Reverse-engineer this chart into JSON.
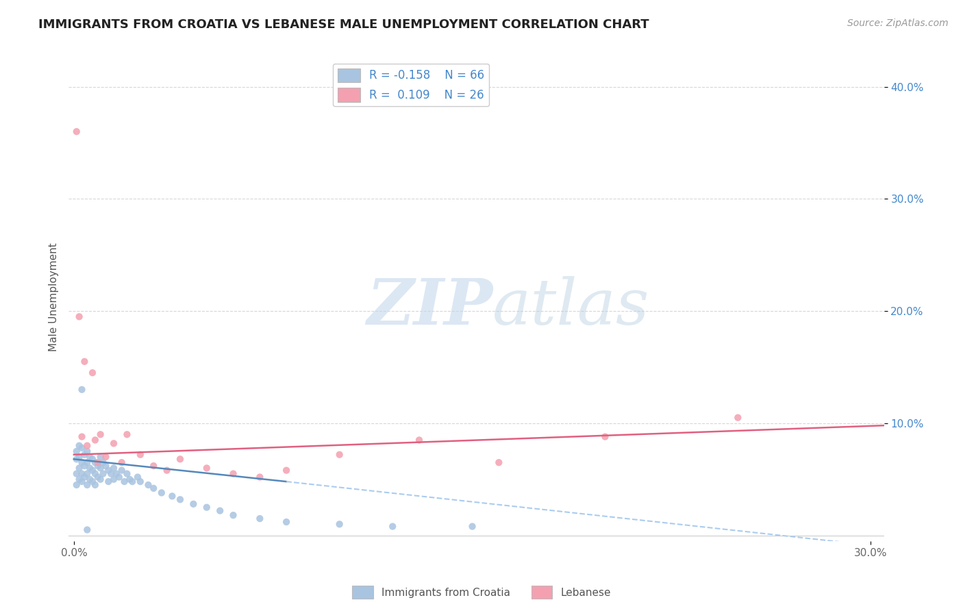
{
  "title": "IMMIGRANTS FROM CROATIA VS LEBANESE MALE UNEMPLOYMENT CORRELATION CHART",
  "source": "Source: ZipAtlas.com",
  "ylabel": "Male Unemployment",
  "xlim": [
    -0.002,
    0.305
  ],
  "ylim": [
    -0.005,
    0.43
  ],
  "color_blue": "#a8c4e0",
  "color_pink": "#f4a0b0",
  "trend_blue_solid": "#5588bb",
  "trend_blue_dash": "#aaccee",
  "trend_pink": "#e06080",
  "watermark_zip": "ZIP",
  "watermark_atlas": "atlas",
  "blue_x": [
    0.001,
    0.001,
    0.001,
    0.001,
    0.002,
    0.002,
    0.002,
    0.002,
    0.003,
    0.003,
    0.003,
    0.003,
    0.004,
    0.004,
    0.004,
    0.005,
    0.005,
    0.005,
    0.005,
    0.006,
    0.006,
    0.006,
    0.007,
    0.007,
    0.007,
    0.008,
    0.008,
    0.008,
    0.009,
    0.009,
    0.01,
    0.01,
    0.01,
    0.011,
    0.011,
    0.012,
    0.013,
    0.013,
    0.014,
    0.015,
    0.015,
    0.016,
    0.017,
    0.018,
    0.019,
    0.02,
    0.021,
    0.022,
    0.024,
    0.025,
    0.028,
    0.03,
    0.033,
    0.037,
    0.04,
    0.045,
    0.05,
    0.055,
    0.06,
    0.07,
    0.08,
    0.1,
    0.12,
    0.003,
    0.005,
    0.15
  ],
  "blue_y": [
    0.075,
    0.068,
    0.055,
    0.045,
    0.08,
    0.07,
    0.06,
    0.05,
    0.078,
    0.065,
    0.055,
    0.048,
    0.072,
    0.062,
    0.052,
    0.075,
    0.065,
    0.055,
    0.045,
    0.07,
    0.06,
    0.05,
    0.068,
    0.058,
    0.048,
    0.065,
    0.055,
    0.045,
    0.062,
    0.052,
    0.07,
    0.06,
    0.05,
    0.065,
    0.055,
    0.062,
    0.058,
    0.048,
    0.055,
    0.06,
    0.05,
    0.055,
    0.052,
    0.058,
    0.048,
    0.055,
    0.05,
    0.048,
    0.052,
    0.048,
    0.045,
    0.042,
    0.038,
    0.035,
    0.032,
    0.028,
    0.025,
    0.022,
    0.018,
    0.015,
    0.012,
    0.01,
    0.008,
    0.13,
    0.005,
    0.008
  ],
  "pink_x": [
    0.001,
    0.002,
    0.003,
    0.004,
    0.005,
    0.007,
    0.008,
    0.009,
    0.01,
    0.012,
    0.015,
    0.018,
    0.02,
    0.025,
    0.03,
    0.035,
    0.04,
    0.05,
    0.06,
    0.07,
    0.08,
    0.1,
    0.13,
    0.16,
    0.2,
    0.25
  ],
  "pink_y": [
    0.36,
    0.195,
    0.088,
    0.155,
    0.08,
    0.145,
    0.085,
    0.065,
    0.09,
    0.07,
    0.082,
    0.065,
    0.09,
    0.072,
    0.062,
    0.058,
    0.068,
    0.06,
    0.055,
    0.052,
    0.058,
    0.072,
    0.085,
    0.065,
    0.088,
    0.105
  ],
  "pink_trend_y0": 0.072,
  "pink_trend_y1": 0.098,
  "blue_trend_solid_x0": 0.0,
  "blue_trend_solid_x1": 0.08,
  "blue_trend_y0": 0.068,
  "blue_trend_y1": 0.048,
  "blue_trend_dash_x0": 0.08,
  "blue_trend_dash_x1": 0.305,
  "blue_trend_dash_y0": 0.048,
  "blue_trend_dash_y1": -0.01
}
